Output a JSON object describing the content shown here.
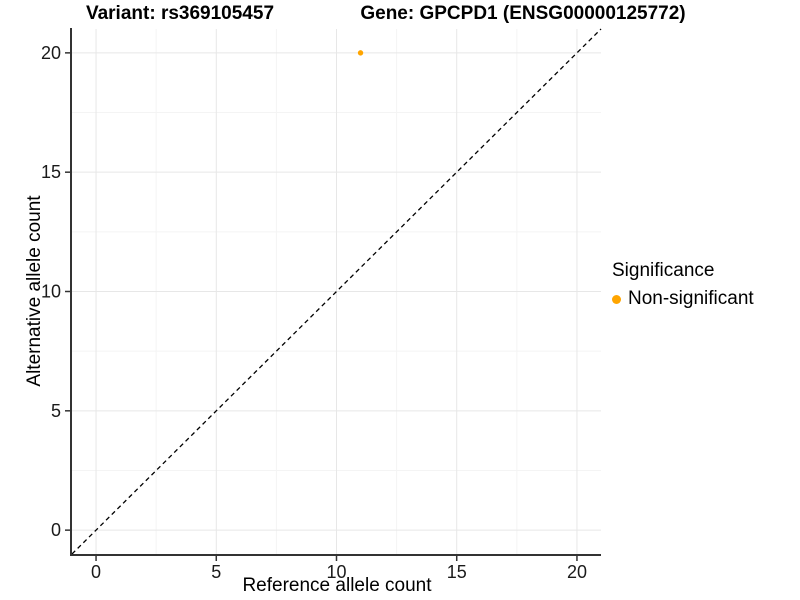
{
  "chart_data": {
    "type": "scatter",
    "title_left": "Variant: rs369105457",
    "title_right": "Gene: GPCPD1 (ENSG00000125772)",
    "xlabel": "Reference allele count",
    "ylabel": "Alternative allele count",
    "xlim": [
      -1,
      21
    ],
    "ylim": [
      -1,
      21
    ],
    "x_ticks": [
      0,
      5,
      10,
      15,
      20
    ],
    "y_ticks": [
      0,
      5,
      10,
      15,
      20
    ],
    "x_minor_ticks": [
      2.5,
      7.5,
      12.5,
      17.5
    ],
    "y_minor_ticks": [
      2.5,
      7.5,
      12.5,
      17.5
    ],
    "grid": true,
    "reference_line": {
      "style": "dashed",
      "slope": 1,
      "intercept": 0,
      "color": "#000000"
    },
    "series": [
      {
        "name": "Non-significant",
        "color": "#FFA500",
        "points": [
          {
            "x": 11,
            "y": 20
          }
        ]
      }
    ],
    "legend": {
      "title": "Significance",
      "position": "right",
      "items": [
        {
          "label": "Non-significant",
          "color": "#FFA500"
        }
      ]
    },
    "colors": {
      "background": "#FFFFFF",
      "grid_major": "#E7E7E7",
      "grid_minor": "#F4F4F4",
      "axis_line": "#333333",
      "tick_text": "#1A1A1A",
      "point": "#FFA500"
    }
  }
}
